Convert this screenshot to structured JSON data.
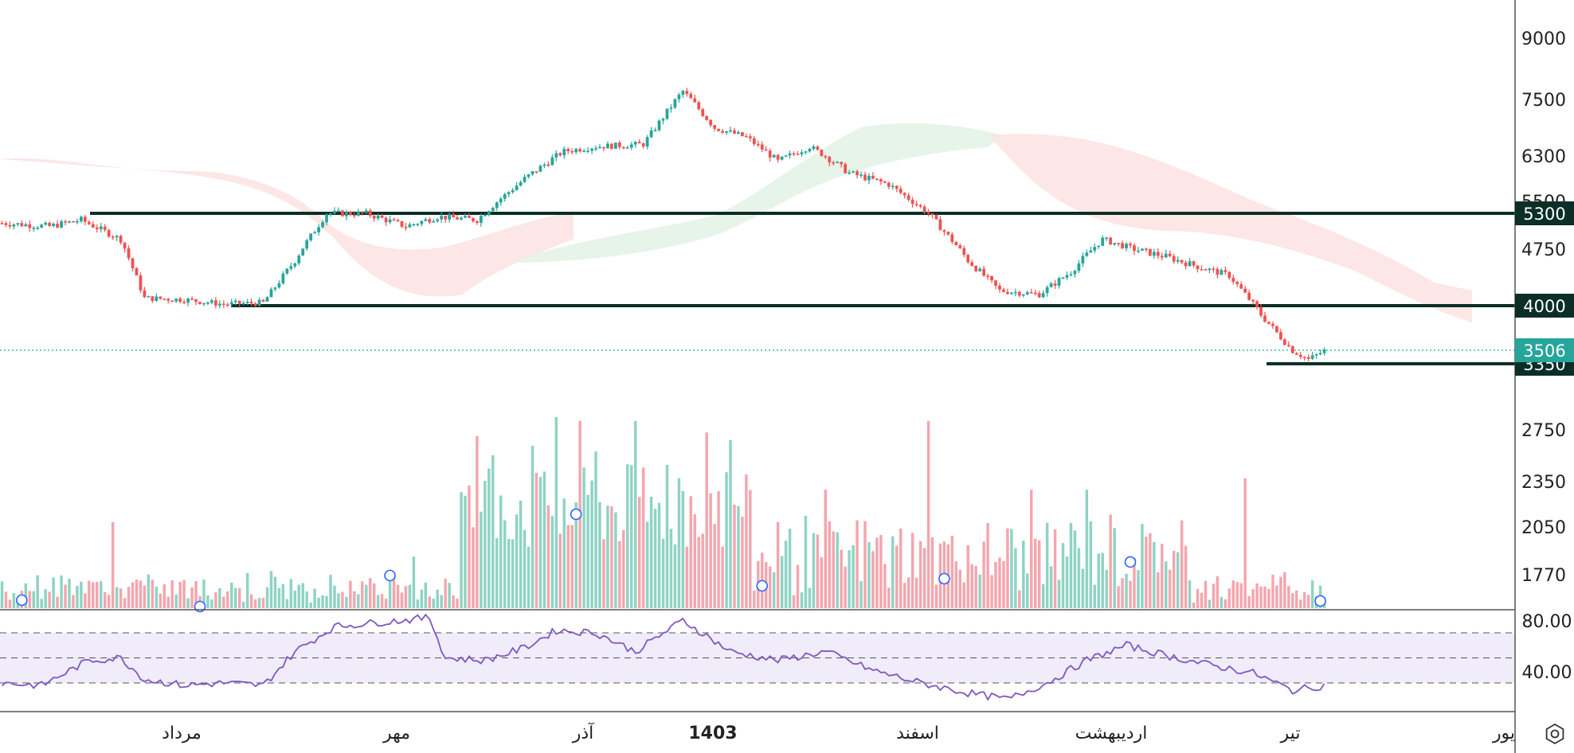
{
  "colors": {
    "up": "#26a69a",
    "down": "#ef5350",
    "volume_up": "#8fd3c4",
    "volume_down": "#f4a6ad",
    "cloud_red": "#fbe2e2",
    "cloud_green": "#e4f3e8",
    "rsi_line": "#7e57c2",
    "rsi_band": "#f0ecfa",
    "level": "#0b2e26",
    "last_price": "#26a69a",
    "marker": "#2962ff"
  },
  "chart_data": {
    "type": "candlestick",
    "price_axis": {
      "ticks": [
        9000,
        7500,
        6300,
        5500,
        4750,
        2750,
        2350,
        2050,
        1770
      ],
      "tick_labels": [
        "9000",
        "7500",
        "6300",
        "5500",
        "4750",
        "2750",
        "2350",
        "2050",
        "1770"
      ]
    },
    "price_levels": [
      {
        "value": 5300,
        "label": "5300"
      },
      {
        "value": 4000,
        "label": "4000"
      },
      {
        "value": 3350,
        "label": "3350"
      }
    ],
    "last_price": {
      "value": 3506,
      "label": "3506"
    },
    "time_axis": {
      "labels": [
        "مرداد",
        "مهر",
        "آذر",
        "1403",
        "اسفند",
        "اردیبهشت",
        "تیر",
        "یور"
      ],
      "bold": "1403"
    },
    "ohlc_anchors": [
      {
        "i": 0,
        "close": 5150
      },
      {
        "i": 12,
        "close": 5100
      },
      {
        "i": 20,
        "close": 5200
      },
      {
        "i": 30,
        "close": 4900
      },
      {
        "i": 36,
        "close": 4100
      },
      {
        "i": 46,
        "close": 4080
      },
      {
        "i": 56,
        "close": 4020
      },
      {
        "i": 66,
        "close": 4040
      },
      {
        "i": 74,
        "close": 4600
      },
      {
        "i": 82,
        "close": 5300
      },
      {
        "i": 92,
        "close": 5300
      },
      {
        "i": 102,
        "close": 5100
      },
      {
        "i": 110,
        "close": 5250
      },
      {
        "i": 120,
        "close": 5200
      },
      {
        "i": 132,
        "close": 5900
      },
      {
        "i": 142,
        "close": 6400
      },
      {
        "i": 150,
        "close": 6500
      },
      {
        "i": 162,
        "close": 6550
      },
      {
        "i": 172,
        "close": 7700
      },
      {
        "i": 180,
        "close": 6900
      },
      {
        "i": 188,
        "close": 6700
      },
      {
        "i": 196,
        "close": 6200
      },
      {
        "i": 204,
        "close": 6500
      },
      {
        "i": 214,
        "close": 6000
      },
      {
        "i": 224,
        "close": 5800
      },
      {
        "i": 234,
        "close": 5300
      },
      {
        "i": 244,
        "close": 4600
      },
      {
        "i": 252,
        "close": 4200
      },
      {
        "i": 262,
        "close": 4150
      },
      {
        "i": 270,
        "close": 4450
      },
      {
        "i": 278,
        "close": 4900
      },
      {
        "i": 286,
        "close": 4750
      },
      {
        "i": 294,
        "close": 4650
      },
      {
        "i": 302,
        "close": 4520
      },
      {
        "i": 310,
        "close": 4400
      },
      {
        "i": 318,
        "close": 3900
      },
      {
        "i": 326,
        "close": 3500
      },
      {
        "i": 330,
        "close": 3400
      },
      {
        "i": 334,
        "close": 3500
      }
    ],
    "volume_markers_at": [
      5,
      50,
      98,
      145,
      192,
      238,
      285,
      333
    ],
    "rsi": {
      "levels": [
        70,
        50,
        30
      ],
      "tick_labels": [
        "80.00",
        "40.00"
      ],
      "anchors": [
        {
          "i": 0,
          "v": 30
        },
        {
          "i": 10,
          "v": 28
        },
        {
          "i": 22,
          "v": 48
        },
        {
          "i": 30,
          "v": 50
        },
        {
          "i": 36,
          "v": 33
        },
        {
          "i": 46,
          "v": 28
        },
        {
          "i": 56,
          "v": 30
        },
        {
          "i": 66,
          "v": 28
        },
        {
          "i": 74,
          "v": 55
        },
        {
          "i": 84,
          "v": 75
        },
        {
          "i": 94,
          "v": 78
        },
        {
          "i": 108,
          "v": 82
        },
        {
          "i": 112,
          "v": 50
        },
        {
          "i": 122,
          "v": 48
        },
        {
          "i": 132,
          "v": 58
        },
        {
          "i": 140,
          "v": 72
        },
        {
          "i": 150,
          "v": 70
        },
        {
          "i": 160,
          "v": 55
        },
        {
          "i": 172,
          "v": 80
        },
        {
          "i": 184,
          "v": 55
        },
        {
          "i": 196,
          "v": 48
        },
        {
          "i": 208,
          "v": 55
        },
        {
          "i": 220,
          "v": 40
        },
        {
          "i": 232,
          "v": 30
        },
        {
          "i": 244,
          "v": 22
        },
        {
          "i": 254,
          "v": 17
        },
        {
          "i": 264,
          "v": 30
        },
        {
          "i": 274,
          "v": 48
        },
        {
          "i": 284,
          "v": 60
        },
        {
          "i": 294,
          "v": 52
        },
        {
          "i": 304,
          "v": 45
        },
        {
          "i": 316,
          "v": 38
        },
        {
          "i": 326,
          "v": 24
        },
        {
          "i": 334,
          "v": 28
        }
      ]
    },
    "volume": {
      "tall_bars": [
        {
          "i": 28,
          "v": 0.45
        },
        {
          "i": 98,
          "v": 0.16
        },
        {
          "i": 104,
          "v": 0.27
        },
        {
          "i": 120,
          "v": 0.9
        },
        {
          "i": 124,
          "v": 0.8
        },
        {
          "i": 134,
          "v": 0.85
        },
        {
          "i": 140,
          "v": 1.0
        },
        {
          "i": 146,
          "v": 0.98
        },
        {
          "i": 150,
          "v": 0.82
        },
        {
          "i": 160,
          "v": 0.98
        },
        {
          "i": 168,
          "v": 0.75
        },
        {
          "i": 178,
          "v": 0.92
        },
        {
          "i": 184,
          "v": 0.88
        },
        {
          "i": 196,
          "v": 0.45
        },
        {
          "i": 208,
          "v": 0.62
        },
        {
          "i": 234,
          "v": 0.98
        },
        {
          "i": 260,
          "v": 0.62
        },
        {
          "i": 274,
          "v": 0.62
        },
        {
          "i": 314,
          "v": 0.68
        }
      ]
    }
  }
}
